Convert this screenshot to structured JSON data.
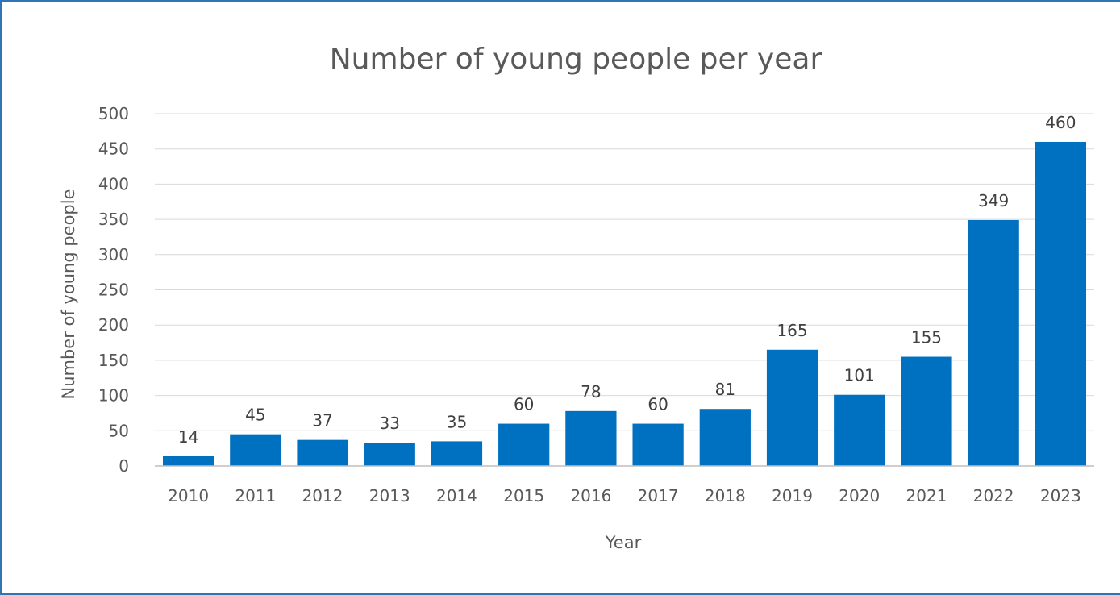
{
  "chart_data": {
    "type": "bar",
    "title": "Number of young people per year",
    "xlabel": "Year",
    "ylabel": "Number of young people",
    "categories": [
      "2010",
      "2011",
      "2012",
      "2013",
      "2014",
      "2015",
      "2016",
      "2017",
      "2018",
      "2019",
      "2020",
      "2021",
      "2022",
      "2023"
    ],
    "values": [
      14,
      45,
      37,
      33,
      35,
      60,
      78,
      60,
      81,
      165,
      101,
      155,
      349,
      460
    ],
    "ylim": [
      0,
      500
    ],
    "yticks": [
      0,
      50,
      100,
      150,
      200,
      250,
      300,
      350,
      400,
      450,
      500
    ],
    "grid": true,
    "data_labels": true,
    "bar_color": "#0070C0",
    "legend": "none"
  }
}
